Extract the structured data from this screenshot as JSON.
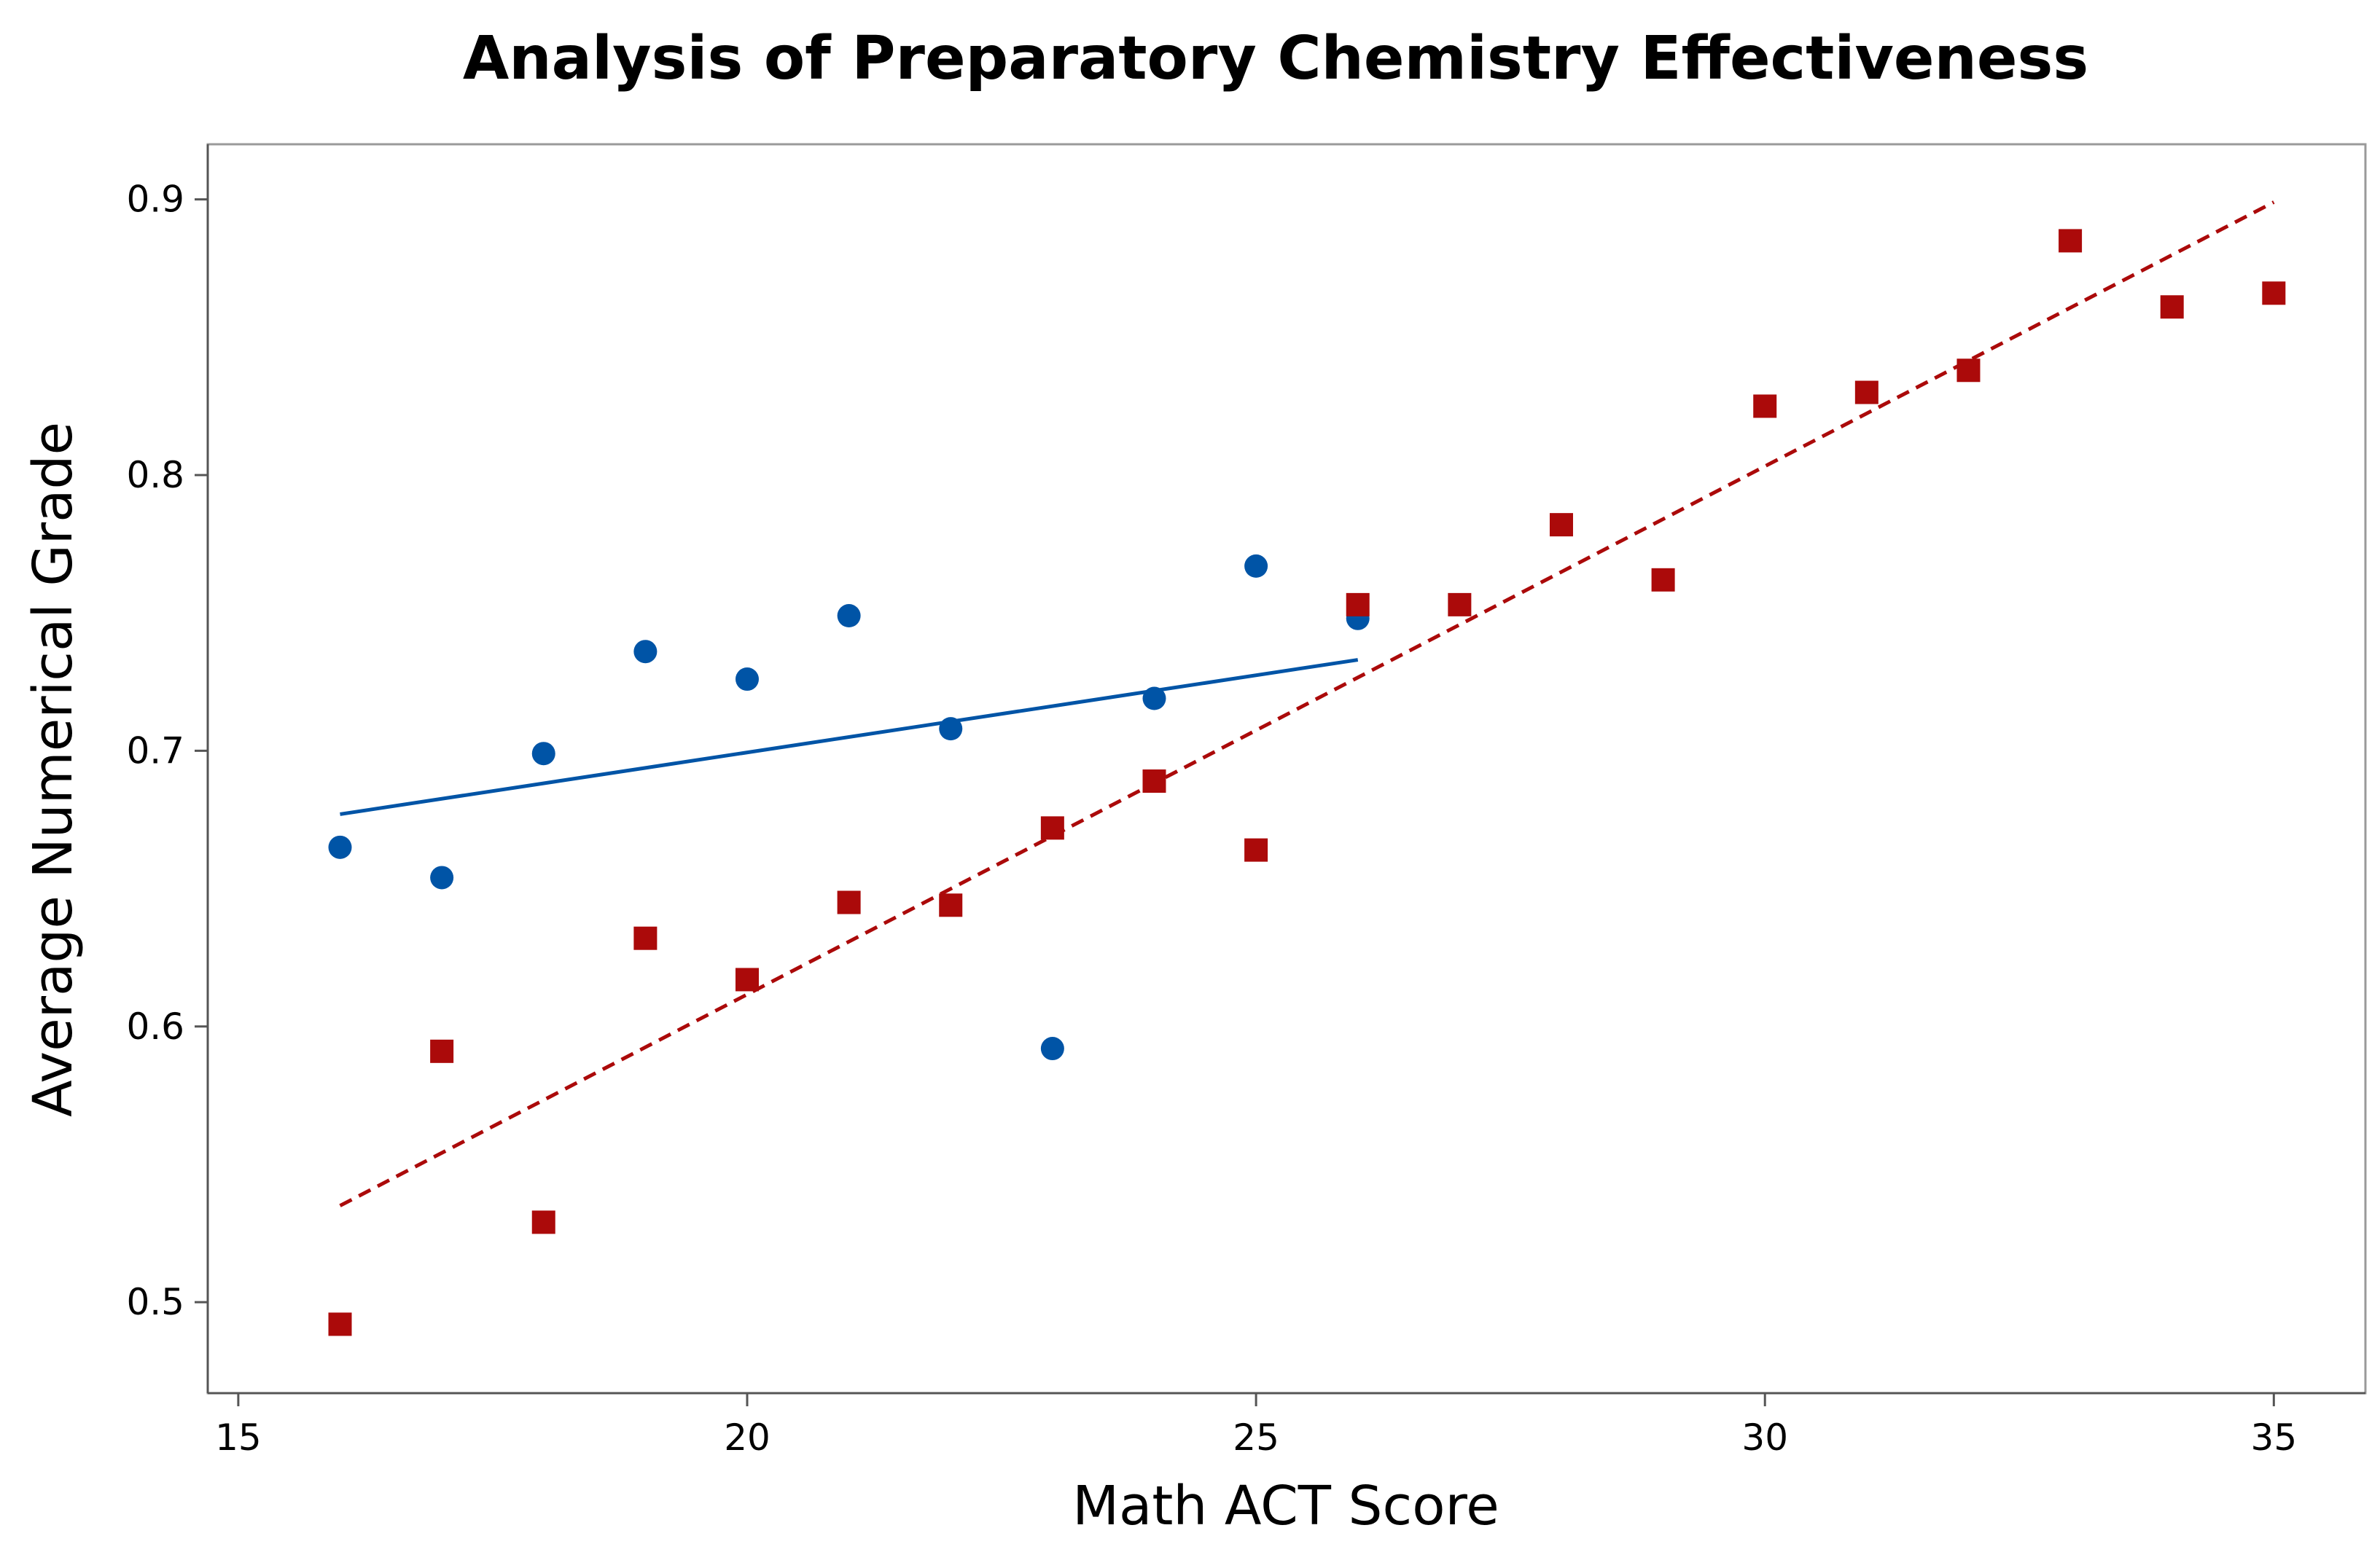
{
  "chart_data": {
    "type": "scatter",
    "title": "Analysis of Preparatory Chemistry Effectiveness",
    "xlabel": "Math ACT Score",
    "ylabel": "Average Numerical Grade",
    "xlim": [
      14.7,
      35.9
    ],
    "ylim": [
      0.467,
      0.92
    ],
    "xticks": [
      15,
      20,
      25,
      30,
      35
    ],
    "yticks": [
      0.5,
      0.6,
      0.7,
      0.8,
      0.9
    ],
    "xtick_labels": [
      "15",
      "20",
      "25",
      "30",
      "35"
    ],
    "ytick_labels": [
      "0.5",
      "0.6",
      "0.7",
      "0.8",
      "0.9"
    ],
    "grid": false,
    "series": [
      {
        "name": "blue circles",
        "marker": "circle",
        "color": "#0054a6",
        "x": [
          16,
          17,
          18,
          19,
          20,
          21,
          22,
          23,
          24,
          25,
          26
        ],
        "y": [
          0.665,
          0.654,
          0.699,
          0.736,
          0.726,
          0.749,
          0.708,
          0.592,
          0.719,
          0.767,
          0.748
        ],
        "fit": {
          "x": [
            16,
            26
          ],
          "y": [
            0.677,
            0.733
          ],
          "style": "solid"
        }
      },
      {
        "name": "red squares",
        "marker": "square",
        "color": "#ab0a0a",
        "x": [
          16,
          17,
          18,
          19,
          20,
          21,
          22,
          23,
          24,
          25,
          26,
          27,
          28,
          29,
          30,
          31,
          32,
          33,
          34,
          35
        ],
        "y": [
          0.492,
          0.591,
          0.529,
          0.632,
          0.617,
          0.645,
          0.644,
          0.672,
          0.689,
          0.664,
          0.753,
          0.753,
          0.782,
          0.762,
          0.825,
          0.83,
          0.838,
          0.885,
          0.861,
          0.866
        ],
        "fit": {
          "x": [
            16,
            35
          ],
          "y": [
            0.535,
            0.899
          ],
          "style": "dashed"
        }
      }
    ]
  }
}
